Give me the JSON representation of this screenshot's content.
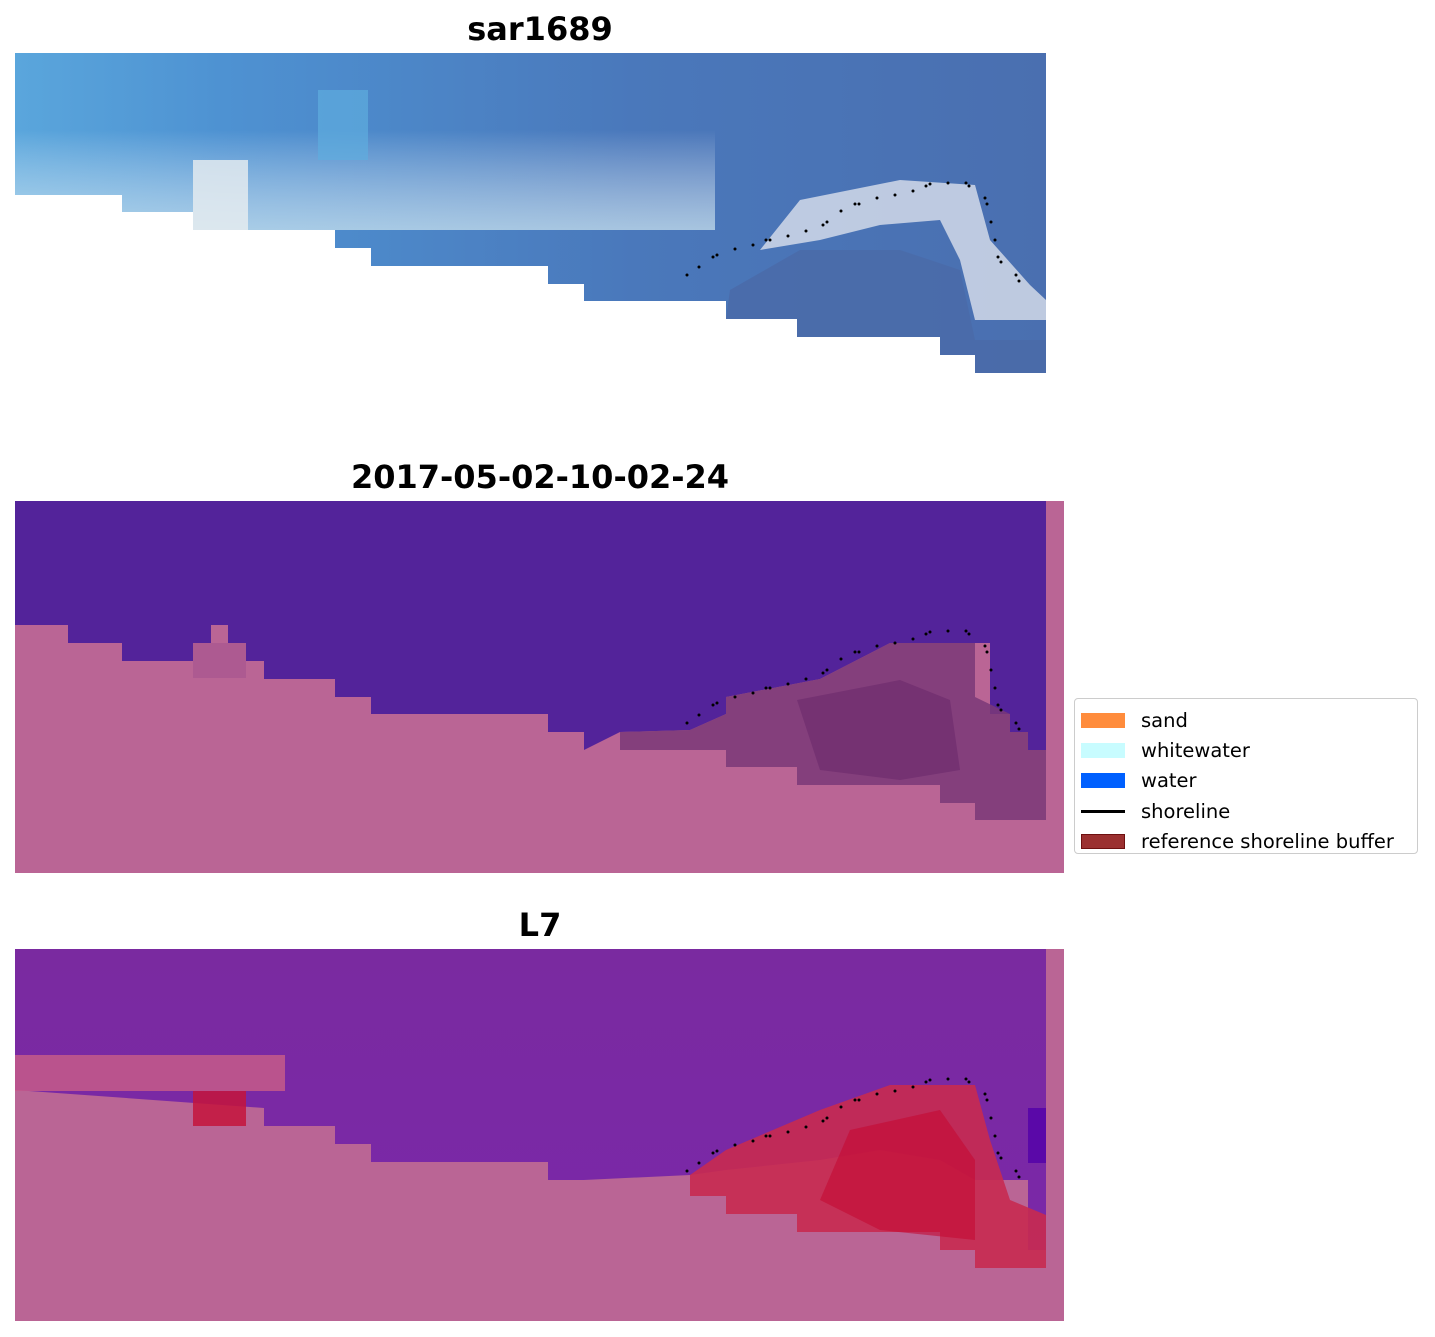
{
  "panels": [
    {
      "title": "sar1689"
    },
    {
      "title": "2017-05-02-10-02-24"
    },
    {
      "title": "L7"
    }
  ],
  "legend": {
    "position": "right",
    "items": [
      {
        "label": "sand",
        "color": "#ff8c3c",
        "kind": "patch"
      },
      {
        "label": "whitewater",
        "color": "#c8fcff",
        "kind": "patch"
      },
      {
        "label": "water",
        "color": "#0060ff",
        "kind": "patch"
      },
      {
        "label": "shoreline",
        "color": "#000000",
        "kind": "line"
      },
      {
        "label": "reference shoreline buffer",
        "color": "#9b3030",
        "kind": "patch"
      }
    ]
  },
  "colors": {
    "land_mask": "#ba6595",
    "water_class": "#53239a",
    "shoreline_points": "#000000"
  }
}
